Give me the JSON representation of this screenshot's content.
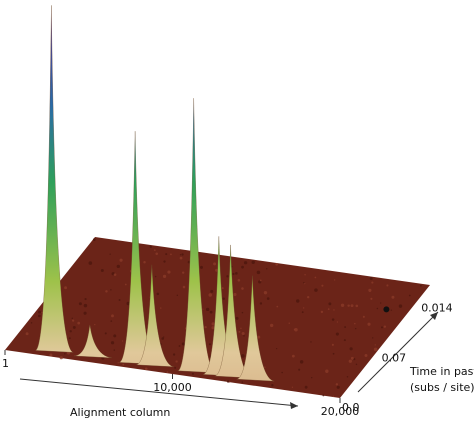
{
  "chart_data": {
    "type": "surface3d",
    "x_label": "Alignment column",
    "y_label": [
      "Time in past",
      "(subs / site)"
    ],
    "xlim": [
      1,
      20000
    ],
    "xticks": [
      1,
      {
        "value": 10000,
        "label": "10,000"
      },
      {
        "value": 20000,
        "label": "20,000"
      }
    ],
    "time_ticks": [
      "0.0",
      "0.07",
      "0.014"
    ],
    "peaks": {
      "x": [
        2500,
        4800,
        7500,
        8500,
        11000,
        12500,
        13200,
        14500
      ],
      "heights": [
        1,
        0.09,
        0.67,
        0.29,
        0.79,
        0.4,
        0.38,
        0.3
      ]
    },
    "surface_color": "#6b2418"
  }
}
